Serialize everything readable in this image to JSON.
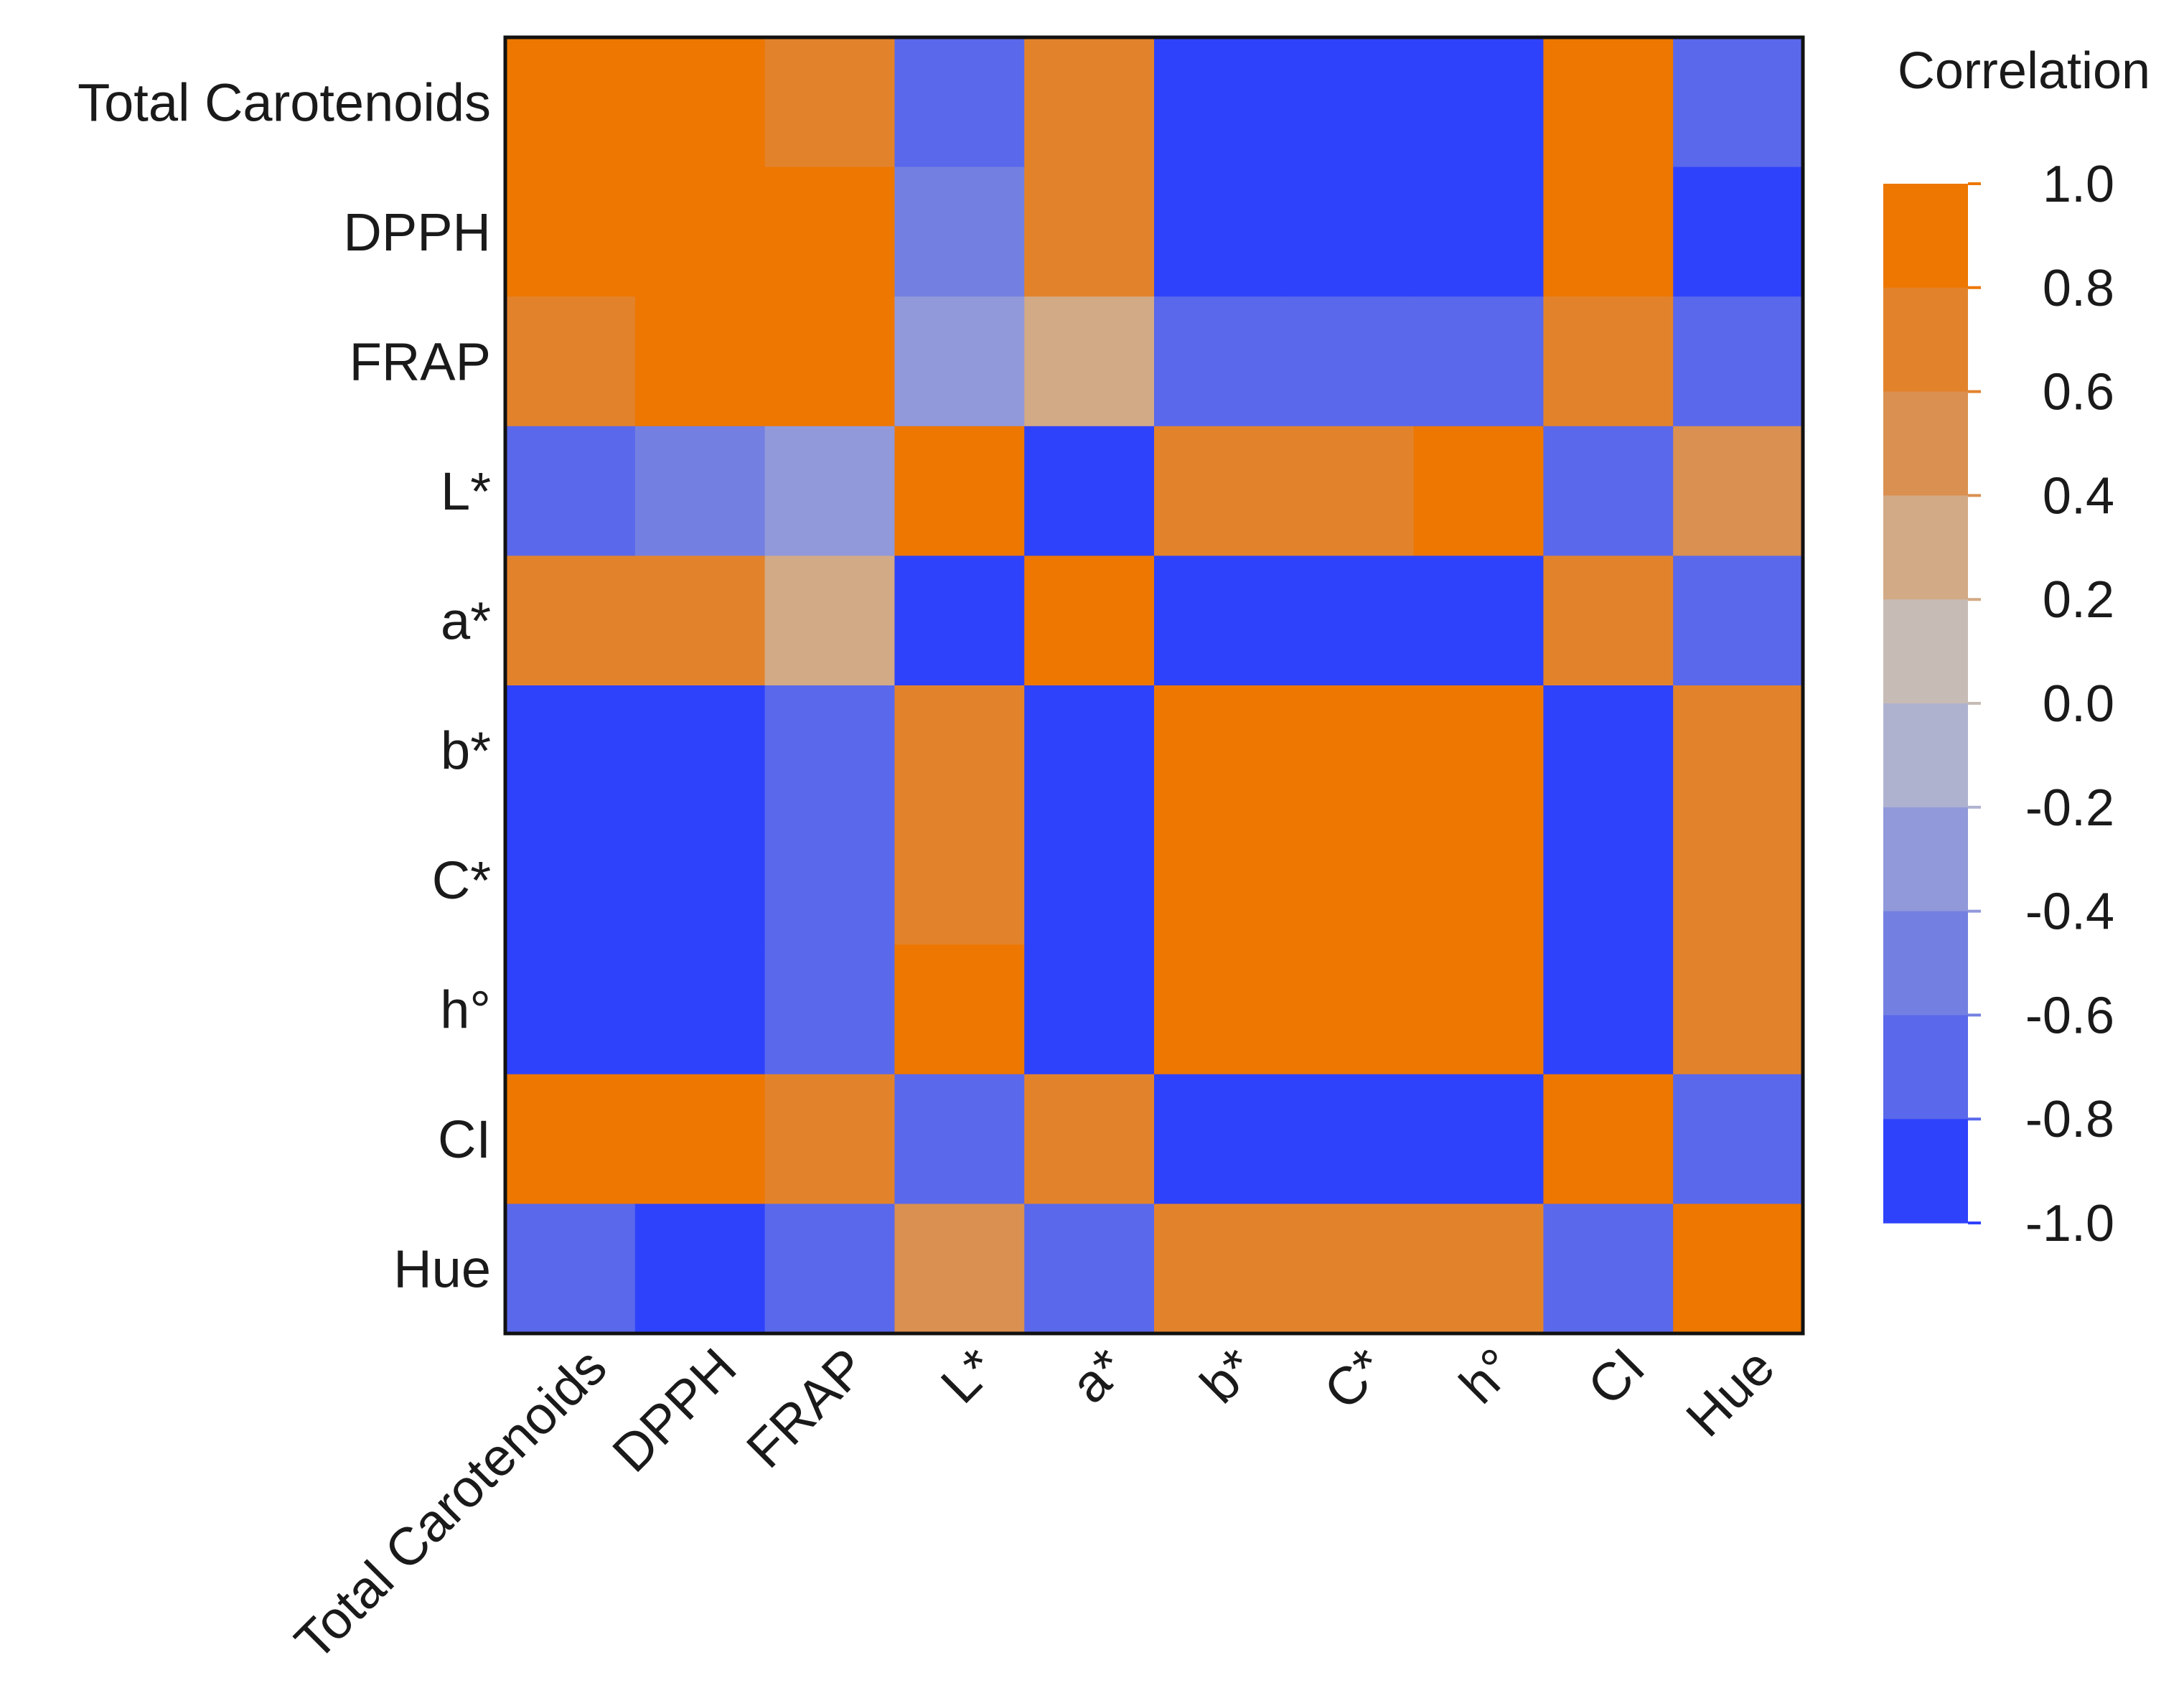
{
  "chart_data": {
    "type": "heatmap",
    "title": "",
    "xlabel": "",
    "ylabel": "",
    "rows": [
      "Total Carotenoids",
      "DPPH",
      "FRAP",
      "L*",
      "a*",
      "b*",
      "C*",
      "h°",
      "CI",
      "Hue"
    ],
    "columns": [
      "Total Carotenoids",
      "DPPH",
      "FRAP",
      "L*",
      "a*",
      "b*",
      "C*",
      "h°",
      "CI",
      "Hue"
    ],
    "values": [
      [
        1.0,
        0.95,
        0.6,
        -0.75,
        0.65,
        -1.0,
        -1.0,
        -1.0,
        0.95,
        -0.75
      ],
      [
        0.95,
        1.0,
        0.9,
        -0.6,
        0.65,
        -1.0,
        -1.0,
        -1.0,
        0.95,
        -0.95
      ],
      [
        0.6,
        0.9,
        1.0,
        -0.35,
        0.3,
        -0.75,
        -0.75,
        -0.75,
        0.65,
        -0.75
      ],
      [
        -0.75,
        -0.6,
        -0.35,
        1.0,
        -1.0,
        0.65,
        0.65,
        0.9,
        -0.75,
        0.4
      ],
      [
        0.65,
        0.65,
        0.3,
        -1.0,
        1.0,
        -0.95,
        -0.95,
        -0.95,
        0.65,
        -0.75
      ],
      [
        -1.0,
        -1.0,
        -0.75,
        0.65,
        -0.95,
        1.0,
        1.0,
        1.0,
        -1.0,
        0.65
      ],
      [
        -1.0,
        -1.0,
        -0.75,
        0.65,
        -0.95,
        1.0,
        1.0,
        1.0,
        -1.0,
        0.65
      ],
      [
        -1.0,
        -1.0,
        -0.75,
        0.9,
        -0.95,
        1.0,
        1.0,
        1.0,
        -1.0,
        0.65
      ],
      [
        0.95,
        0.95,
        0.65,
        -0.75,
        0.65,
        -1.0,
        -1.0,
        -1.0,
        1.0,
        -0.75
      ],
      [
        -0.75,
        -0.95,
        -0.75,
        0.4,
        -0.75,
        0.65,
        0.65,
        0.65,
        -0.75,
        1.0
      ]
    ],
    "zlim": [
      -1.0,
      1.0
    ],
    "colorbar": {
      "title": "Correlation",
      "ticks": [
        1.0,
        0.8,
        0.6,
        0.4,
        0.2,
        0.0,
        -0.2,
        -0.4,
        -0.6,
        -0.8,
        -1.0
      ],
      "tick_labels": [
        "1.0",
        "0.8",
        "0.6",
        "0.4",
        "0.2",
        "0.0",
        "-0.2",
        "-0.4",
        "-0.6",
        "-0.8",
        "-1.0"
      ],
      "bins": [
        {
          "from": 0.8,
          "to": 1.0,
          "color": "#ED7700"
        },
        {
          "from": 0.6,
          "to": 0.8,
          "color": "#E2832C"
        },
        {
          "from": 0.4,
          "to": 0.6,
          "color": "#DA9050"
        },
        {
          "from": 0.2,
          "to": 0.4,
          "color": "#D3AA86"
        },
        {
          "from": 0.0,
          "to": 0.2,
          "color": "#C7BCB5"
        },
        {
          "from": -0.2,
          "to": 0.0,
          "color": "#AFB2CF"
        },
        {
          "from": -0.4,
          "to": -0.2,
          "color": "#9199DA"
        },
        {
          "from": -0.6,
          "to": -0.4,
          "color": "#7480E1"
        },
        {
          "from": -0.8,
          "to": -0.6,
          "color": "#5A68EB"
        },
        {
          "from": -1.0,
          "to": -0.8,
          "color": "#2F42FB"
        }
      ]
    },
    "legend": "right"
  },
  "colors": {
    "high": "#ED7700",
    "low": "#2F42FB",
    "frame": "#111111"
  }
}
